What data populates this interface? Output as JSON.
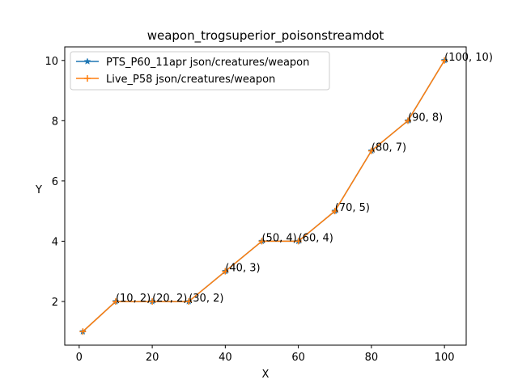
{
  "chart_data": {
    "type": "line",
    "title": "weapon_trogsuperior_poisonstreamdot",
    "xlabel": "X",
    "ylabel": "Y",
    "xlim": [
      -3.95,
      105.95
    ],
    "ylim": [
      0.55,
      10.45
    ],
    "xticks": [
      0,
      20,
      40,
      60,
      80,
      100
    ],
    "yticks": [
      2,
      4,
      6,
      8,
      10
    ],
    "grid": false,
    "legend_position": "upper-left",
    "x": [
      1,
      10,
      20,
      30,
      40,
      50,
      60,
      70,
      80,
      90,
      100
    ],
    "series": [
      {
        "name": "PTS_P60_11apr json/creatures/weapon",
        "color": "#1f77b4",
        "marker": "star",
        "values": [
          1,
          2,
          2,
          2,
          3,
          4,
          4,
          5,
          7,
          8,
          10
        ]
      },
      {
        "name": "Live_P58 json/creatures/weapon",
        "color": "#ff7f0e",
        "marker": "plus",
        "values": [
          1,
          2,
          2,
          2,
          3,
          4,
          4,
          5,
          7,
          8,
          10
        ]
      }
    ],
    "annotations": [
      {
        "x": 10,
        "y": 2,
        "text": "(10, 2)"
      },
      {
        "x": 20,
        "y": 2,
        "text": "(20, 2)"
      },
      {
        "x": 30,
        "y": 2,
        "text": "(30, 2)"
      },
      {
        "x": 40,
        "y": 3,
        "text": "(40, 3)"
      },
      {
        "x": 50,
        "y": 4,
        "text": "(50, 4)"
      },
      {
        "x": 60,
        "y": 4,
        "text": "(60, 4)"
      },
      {
        "x": 70,
        "y": 5,
        "text": "(70, 5)"
      },
      {
        "x": 80,
        "y": 7,
        "text": "(80, 7)"
      },
      {
        "x": 90,
        "y": 8,
        "text": "(90, 8)"
      },
      {
        "x": 100,
        "y": 10,
        "text": "(100, 10)"
      }
    ]
  }
}
